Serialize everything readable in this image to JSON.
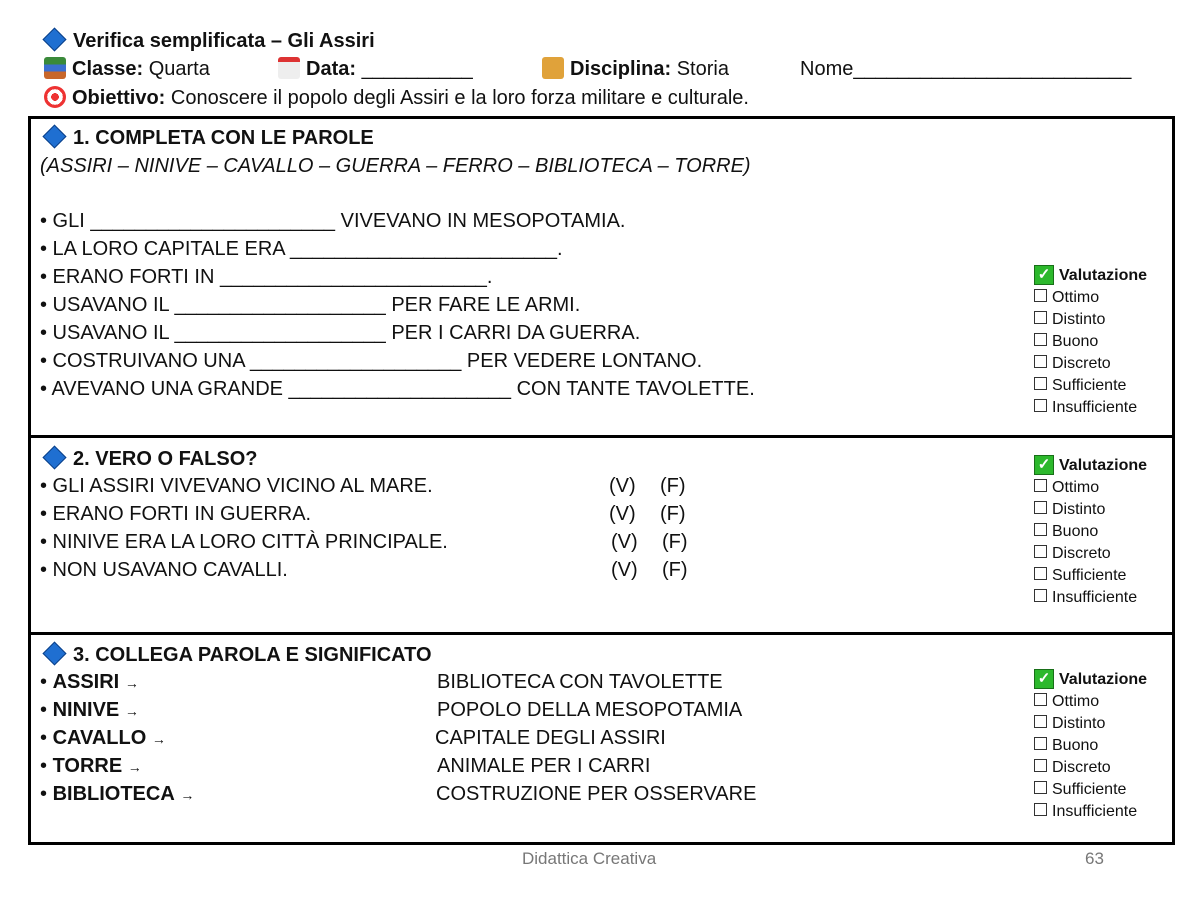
{
  "header": {
    "title": "Verifica semplificata – Gli Assiri",
    "classe_label": "Classe:",
    "classe_value": "Quarta",
    "data_label": "Data:",
    "data_value": "__________",
    "disciplina_label": "Disciplina:",
    "disciplina_value": "Storia",
    "nome": "Nome_________________________",
    "obiettivo_label": "Obiettivo:",
    "obiettivo_value": "Conoscere il popolo degli Assiri e la loro forza militare e culturale."
  },
  "rating": {
    "title": "Valutazione",
    "options": [
      "Ottimo",
      "Distinto",
      "Buono",
      "Discreto",
      "Sufficiente",
      "Insufficiente"
    ]
  },
  "s1": {
    "title": "1. COMPLETA CON LE PAROLE",
    "words": "(ASSIRI – NINIVE – CAVALLO – GUERRA – FERRO – BIBLIOTECA – TORRE)",
    "items": [
      "• GLI ______________________ VIVEVANO IN MESOPOTAMIA.",
      "• LA LORO CAPITALE ERA ________________________.",
      "• ERANO FORTI IN ________________________.",
      "• USAVANO IL ___________________ PER FARE LE ARMI.",
      "• USAVANO IL ___________________ PER I CARRI DA GUERRA.",
      "• COSTRUIVANO UNA ___________________ PER VEDERE LONTANO.",
      "• AVEVANO UNA GRANDE ____________________ CON TANTE TAVOLETTE."
    ]
  },
  "s2": {
    "title": "2. VERO O FALSO?",
    "v": "(V)",
    "f": "(F)",
    "items": [
      "• GLI ASSIRI VIVEVANO VICINO AL MARE.",
      "• ERANO FORTI IN GUERRA.",
      "• NINIVE ERA LA LORO CITTÀ PRINCIPALE.",
      "• NON USAVANO CAVALLI."
    ]
  },
  "s3": {
    "title": "3. COLLEGA PAROLA E SIGNIFICATO",
    "arrow": "→",
    "words": [
      "ASSIRI",
      "NINIVE",
      "CAVALLO",
      "TORRE",
      "BIBLIOTECA"
    ],
    "meanings": [
      "BIBLIOTECA CON TAVOLETTE",
      "POPOLO DELLA MESOPOTAMIA",
      "CAPITALE DEGLI ASSIRI",
      "ANIMALE PER I CARRI",
      "COSTRUZIONE PER OSSERVARE"
    ]
  },
  "footer": {
    "text": "Didattica Creativa",
    "page": "63"
  }
}
